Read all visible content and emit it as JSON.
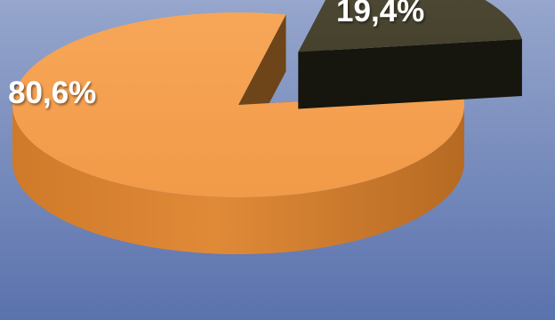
{
  "chart_data": {
    "type": "pie",
    "style": "3d-exploded",
    "legend": "none",
    "slices": [
      {
        "label": "80,6%",
        "value": 80.6,
        "color": "#f5a04f"
      },
      {
        "label": "19,4%",
        "value": 19.4,
        "color": "#4a4632"
      }
    ]
  },
  "colors": {
    "background_top": "#96a6cc",
    "background_bottom": "#5a72ad",
    "large_slice": "#f5a04f",
    "small_slice": "#4a4632"
  }
}
